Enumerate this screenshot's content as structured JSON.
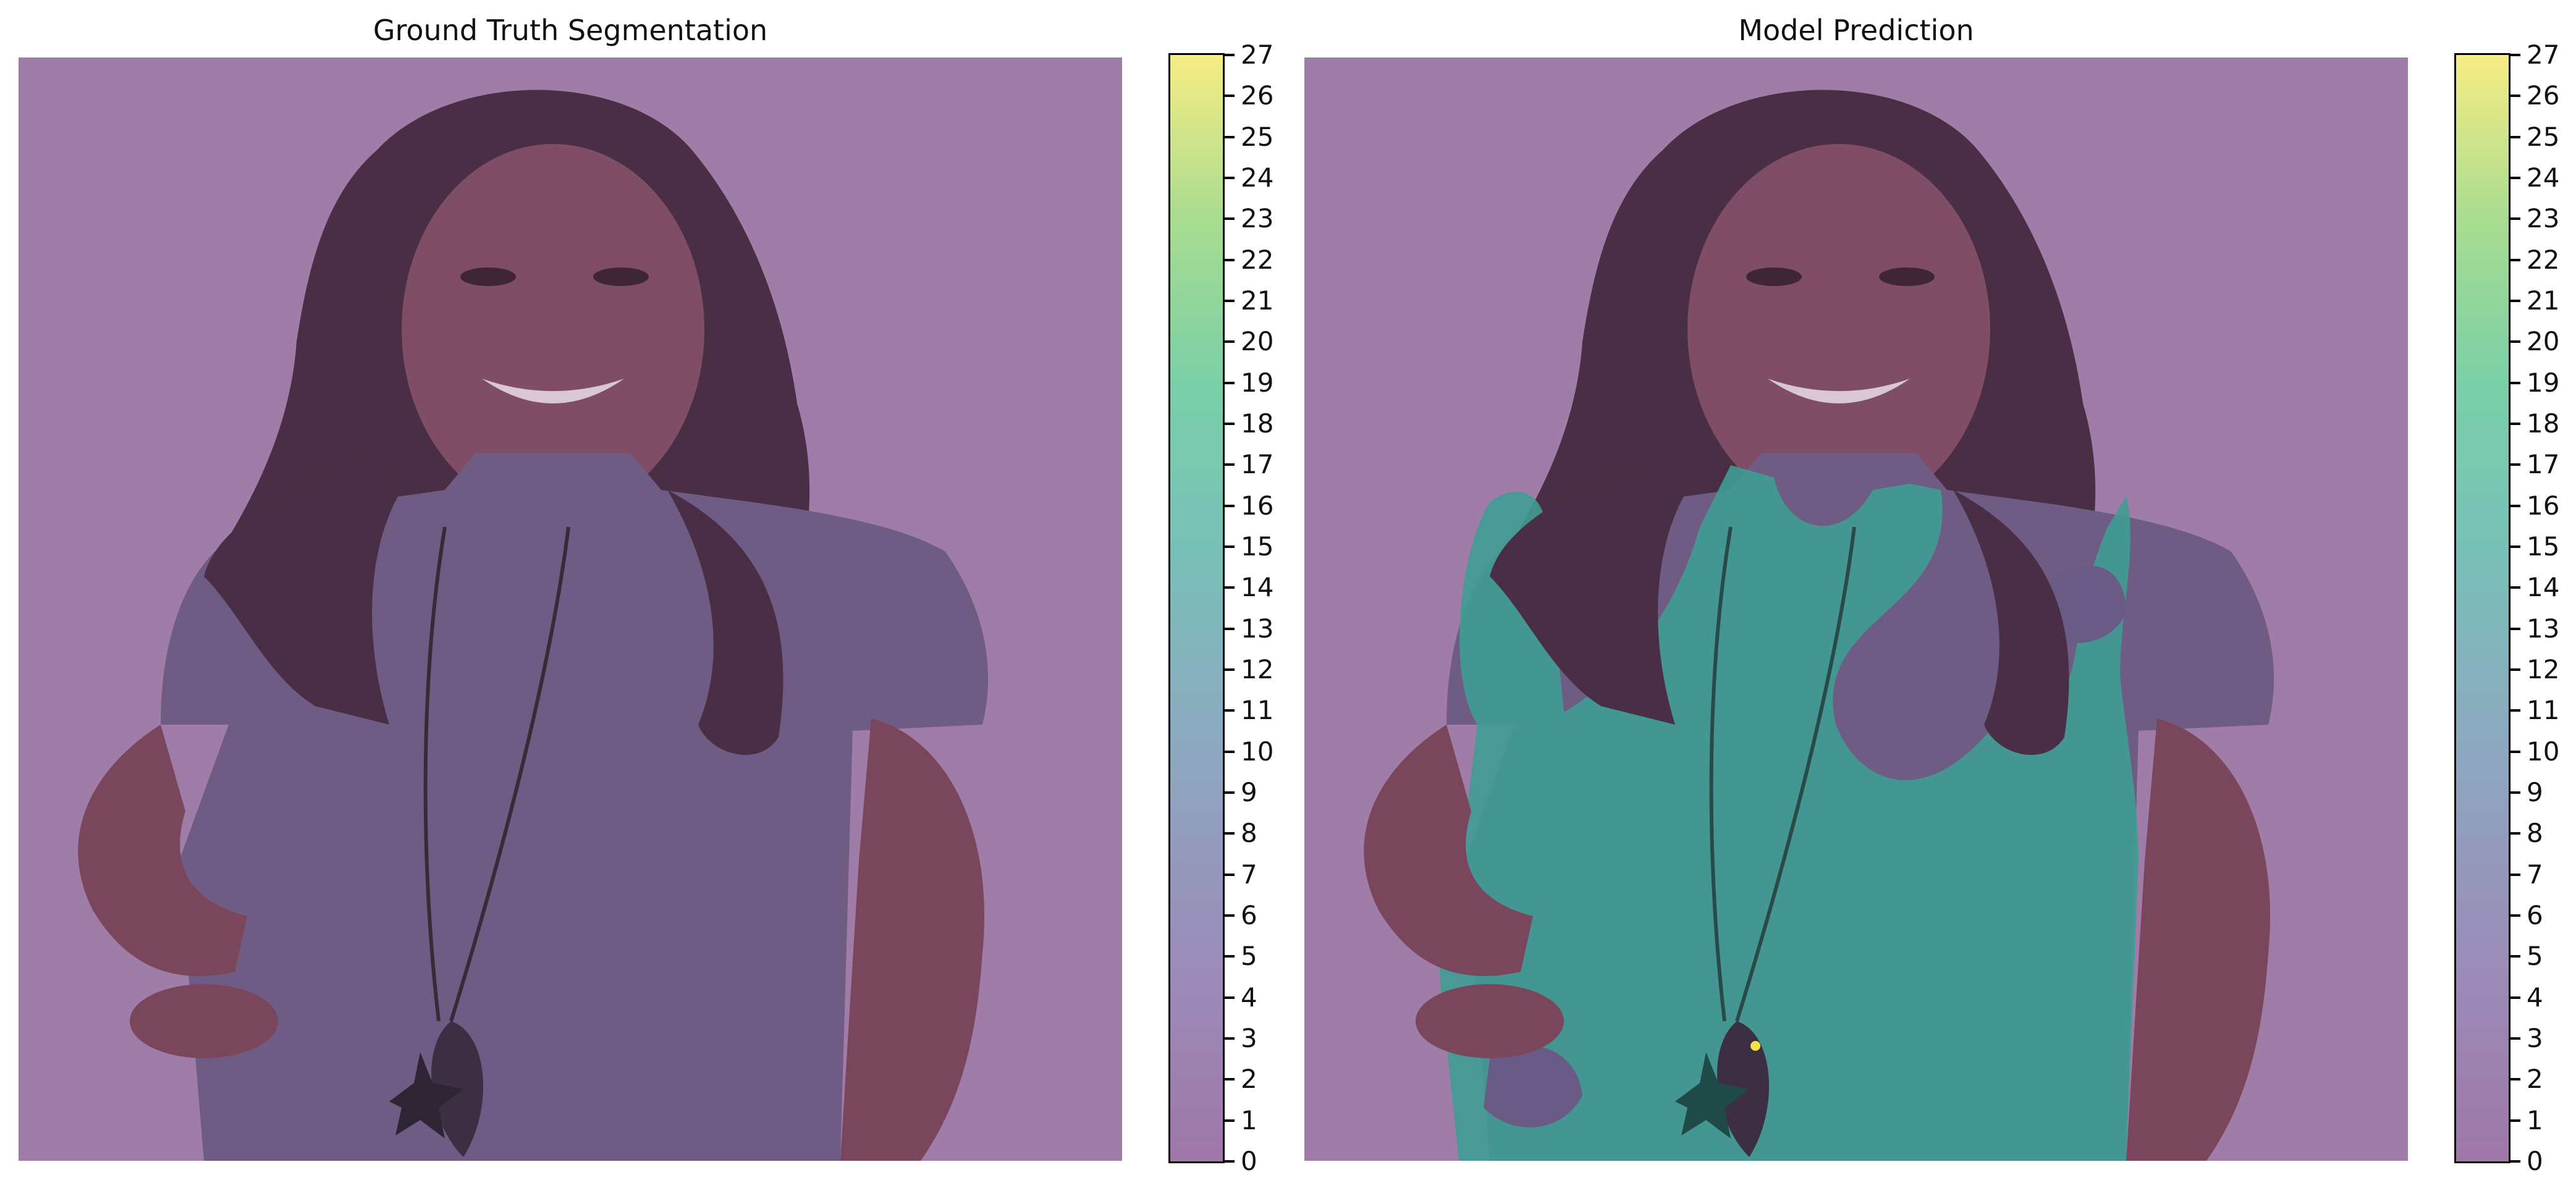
{
  "figure": {
    "panels": [
      {
        "title": "Ground Truth Segmentation",
        "image_description_icon": "portrait-photo-overlay",
        "overlay_class": 0
      },
      {
        "title": "Model Prediction",
        "image_description_icon": "portrait-photo-overlay",
        "overlay_classes": [
          0,
          14,
          27
        ]
      }
    ],
    "colorbar": {
      "min": 0,
      "max": 27,
      "ticks": [
        "0",
        "1",
        "2",
        "3",
        "4",
        "5",
        "6",
        "7",
        "8",
        "9",
        "10",
        "11",
        "12",
        "13",
        "14",
        "15",
        "16",
        "17",
        "18",
        "19",
        "20",
        "21",
        "22",
        "23",
        "24",
        "25",
        "26",
        "27"
      ],
      "colormap": "viridis-alpha",
      "colors": {
        "low": "#9f78a8",
        "mid": "#79c0b8",
        "high": "#f6ed84"
      }
    }
  }
}
